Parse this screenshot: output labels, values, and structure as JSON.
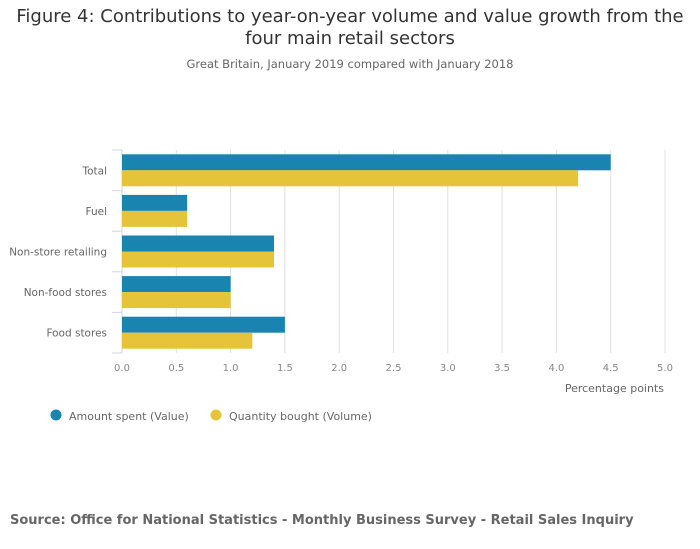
{
  "chart_data": {
    "type": "bar",
    "orientation": "horizontal",
    "title": "Figure 4: Contributions to year-on-year volume and value growth from the four main retail sectors",
    "subtitle": "Great Britain, January 2019 compared with January 2018",
    "xlabel": "Percentage points",
    "ylabel": "",
    "xlim": [
      0,
      5
    ],
    "xticks": [
      "0.0",
      "0.5",
      "1.0",
      "1.5",
      "2.0",
      "2.5",
      "3.0",
      "3.5",
      "4.0",
      "4.5",
      "5.0"
    ],
    "grid": true,
    "legend_position": "bottom-left",
    "categories": [
      "Total",
      "Fuel",
      "Non-store retailing",
      "Non-food stores",
      "Food stores"
    ],
    "series": [
      {
        "name": "Amount spent (Value)",
        "color": "#1a84b0",
        "values": [
          4.5,
          0.6,
          1.4,
          1.0,
          1.5
        ]
      },
      {
        "name": "Quantity bought (Volume)",
        "color": "#e5c43a",
        "values": [
          4.2,
          0.6,
          1.4,
          1.0,
          1.2
        ]
      }
    ]
  },
  "source": "Source: Office for National Statistics - Monthly Business Survey - Retail Sales Inquiry"
}
